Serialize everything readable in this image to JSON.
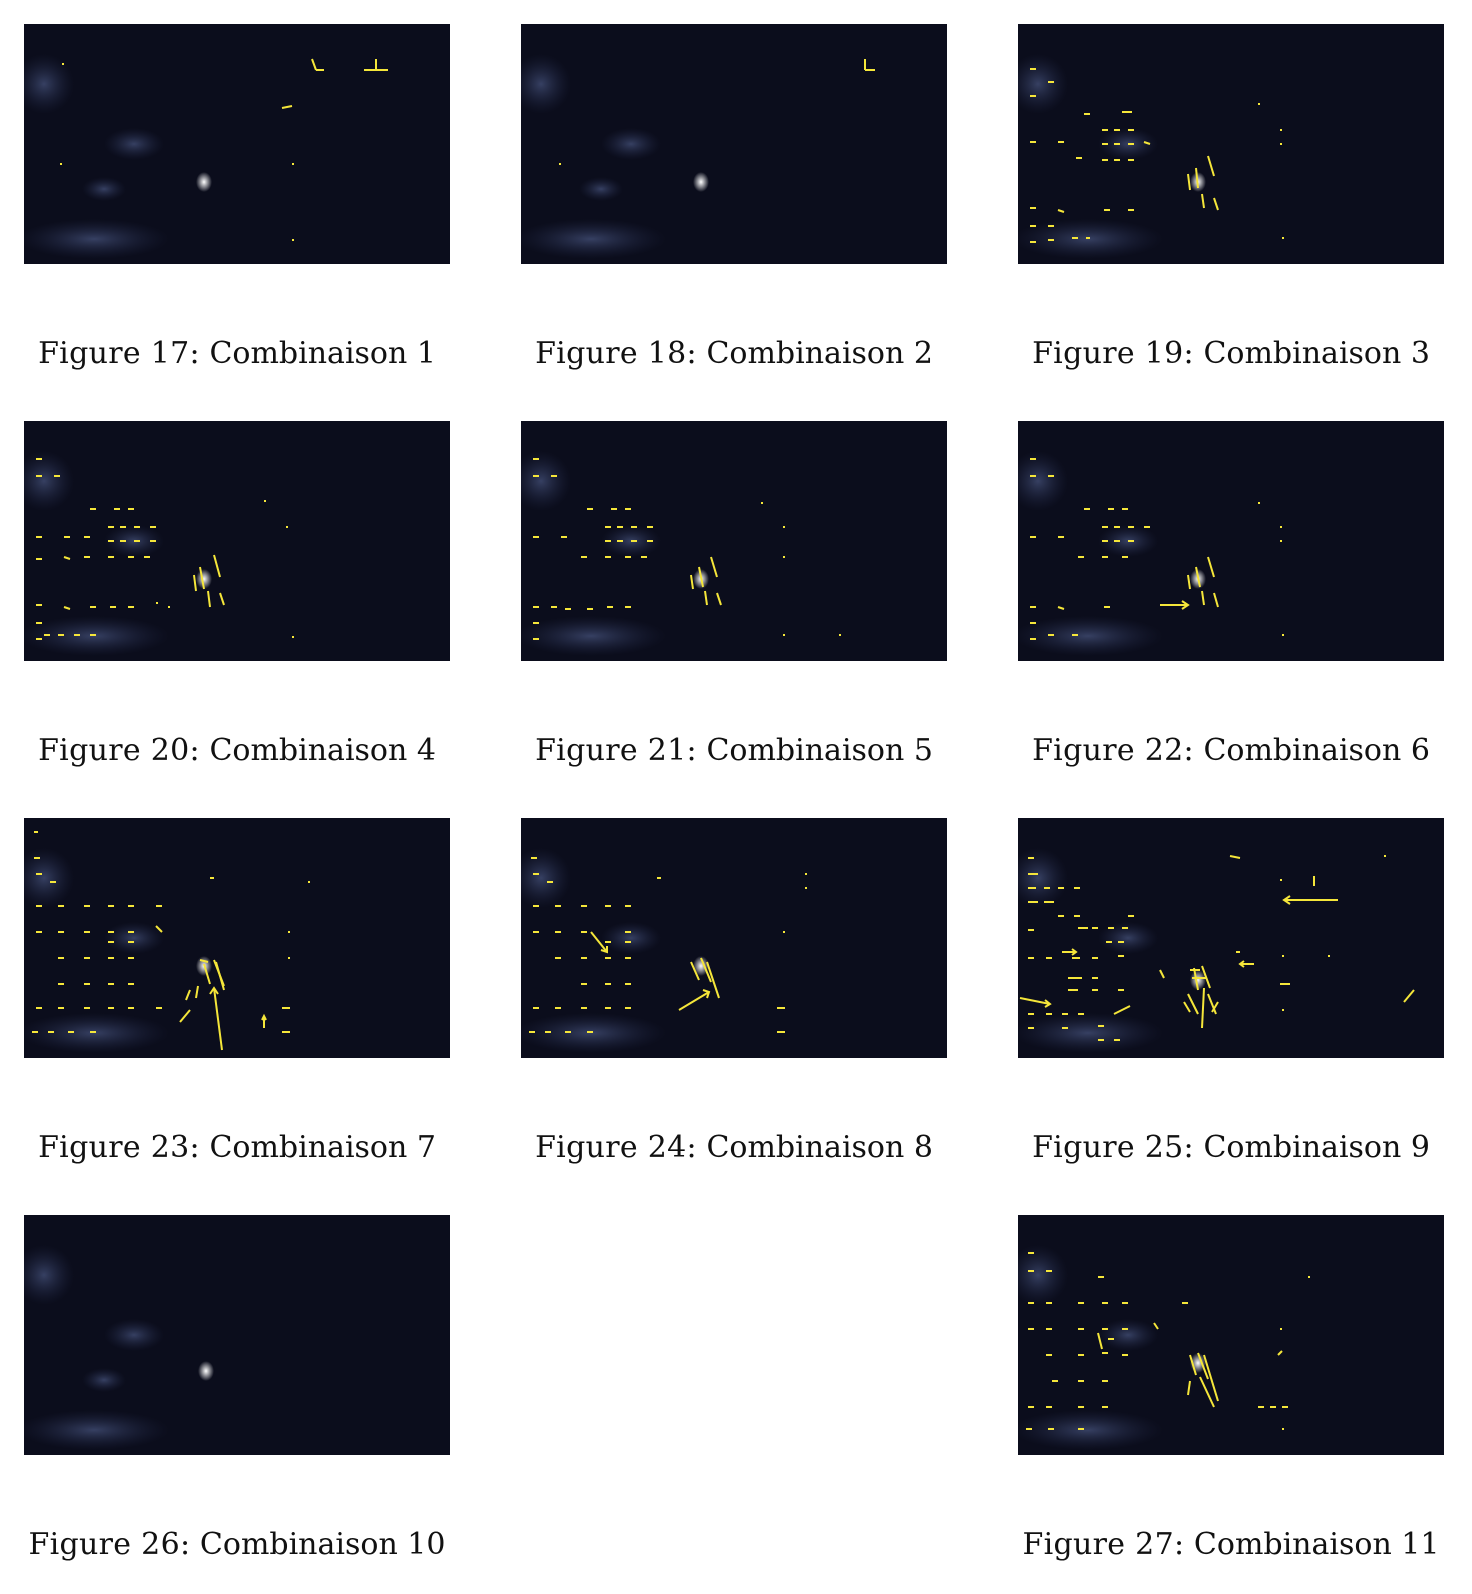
{
  "figures": [
    {
      "label": "Figure 17:",
      "caption": "Combinaison 1",
      "overlay": "sparse"
    },
    {
      "label": "Figure 18:",
      "caption": "Combinaison 2",
      "overlay": "minimal"
    },
    {
      "label": "Figure 19:",
      "caption": "Combinaison 3",
      "overlay": "grid"
    },
    {
      "label": "Figure 20:",
      "caption": "Combinaison 4",
      "overlay": "grid"
    },
    {
      "label": "Figure 21:",
      "caption": "Combinaison 5",
      "overlay": "grid"
    },
    {
      "label": "Figure 22:",
      "caption": "Combinaison 6",
      "overlay": "grid-arrow"
    },
    {
      "label": "Figure 23:",
      "caption": "Combinaison 7",
      "overlay": "dense"
    },
    {
      "label": "Figure 24:",
      "caption": "Combinaison 8",
      "overlay": "dense"
    },
    {
      "label": "Figure 25:",
      "caption": "Combinaison 9",
      "overlay": "very-dense"
    },
    {
      "label": "Figure 26:",
      "caption": "Combinaison 10",
      "overlay": "none"
    },
    {
      "label": "Figure 27:",
      "caption": "Combinaison 11",
      "overlay": "grid"
    }
  ],
  "colors": {
    "frame_background": "#0b0d1c",
    "flow_vectors": "#f5e63a",
    "page": "#ffffff"
  }
}
